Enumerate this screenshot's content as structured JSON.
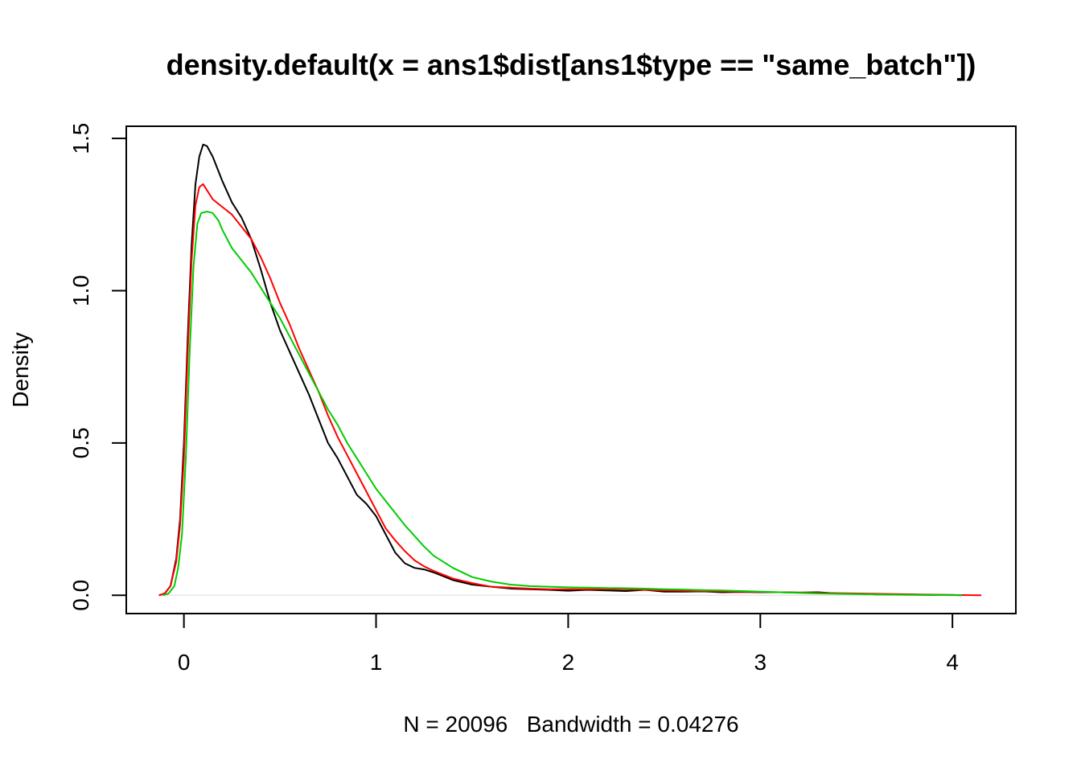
{
  "chart_data": {
    "type": "line",
    "title": "density.default(x = ans1$dist[ans1$type == \"same_batch\"])",
    "xlabel": "N = 20096   Bandwidth = 0.04276",
    "ylabel": "Density",
    "xlim": [
      -0.3,
      4.33
    ],
    "ylim": [
      -0.06,
      1.54
    ],
    "x_ticks": [
      0,
      1,
      2,
      3,
      4
    ],
    "x_tick_labels": [
      "0",
      "1",
      "2",
      "3",
      "4"
    ],
    "y_ticks": [
      0.0,
      0.5,
      1.0,
      1.5
    ],
    "y_tick_labels": [
      "0.0",
      "0.5",
      "1.0",
      "1.5"
    ],
    "baseline": 0,
    "grid": false,
    "legend": "none",
    "series": [
      {
        "color": "#000000",
        "points": [
          [
            -0.13,
            0.0
          ],
          [
            -0.1,
            0.006
          ],
          [
            -0.07,
            0.03
          ],
          [
            -0.04,
            0.12
          ],
          [
            -0.02,
            0.25
          ],
          [
            0.0,
            0.5
          ],
          [
            0.02,
            0.85
          ],
          [
            0.04,
            1.15
          ],
          [
            0.06,
            1.35
          ],
          [
            0.08,
            1.44
          ],
          [
            0.1,
            1.48
          ],
          [
            0.12,
            1.475
          ],
          [
            0.15,
            1.44
          ],
          [
            0.2,
            1.36
          ],
          [
            0.25,
            1.29
          ],
          [
            0.3,
            1.24
          ],
          [
            0.35,
            1.17
          ],
          [
            0.4,
            1.07
          ],
          [
            0.45,
            0.96
          ],
          [
            0.5,
            0.87
          ],
          [
            0.55,
            0.8
          ],
          [
            0.6,
            0.73
          ],
          [
            0.65,
            0.66
          ],
          [
            0.7,
            0.58
          ],
          [
            0.75,
            0.5
          ],
          [
            0.8,
            0.45
          ],
          [
            0.85,
            0.39
          ],
          [
            0.9,
            0.33
          ],
          [
            0.95,
            0.3
          ],
          [
            1.0,
            0.26
          ],
          [
            1.05,
            0.2
          ],
          [
            1.1,
            0.14
          ],
          [
            1.15,
            0.105
          ],
          [
            1.2,
            0.09
          ],
          [
            1.25,
            0.085
          ],
          [
            1.3,
            0.075
          ],
          [
            1.4,
            0.05
          ],
          [
            1.5,
            0.035
          ],
          [
            1.6,
            0.028
          ],
          [
            1.7,
            0.022
          ],
          [
            1.8,
            0.02
          ],
          [
            1.9,
            0.018
          ],
          [
            2.0,
            0.015
          ],
          [
            2.1,
            0.018
          ],
          [
            2.2,
            0.016
          ],
          [
            2.3,
            0.014
          ],
          [
            2.4,
            0.018
          ],
          [
            2.5,
            0.012
          ],
          [
            2.6,
            0.012
          ],
          [
            2.7,
            0.013
          ],
          [
            2.8,
            0.01
          ],
          [
            2.9,
            0.011
          ],
          [
            3.0,
            0.01
          ],
          [
            3.1,
            0.01
          ],
          [
            3.2,
            0.009
          ],
          [
            3.3,
            0.01
          ],
          [
            3.4,
            0.006
          ],
          [
            3.5,
            0.005
          ],
          [
            3.6,
            0.003
          ],
          [
            3.7,
            0.003
          ],
          [
            3.8,
            0.002
          ],
          [
            3.9,
            0.001
          ],
          [
            4.0,
            0.001
          ],
          [
            4.05,
            0.0
          ]
        ]
      },
      {
        "color": "#ff0000",
        "points": [
          [
            -0.13,
            0.0
          ],
          [
            -0.1,
            0.006
          ],
          [
            -0.07,
            0.03
          ],
          [
            -0.04,
            0.11
          ],
          [
            -0.02,
            0.23
          ],
          [
            0.0,
            0.45
          ],
          [
            0.02,
            0.8
          ],
          [
            0.04,
            1.1
          ],
          [
            0.06,
            1.28
          ],
          [
            0.08,
            1.34
          ],
          [
            0.1,
            1.35
          ],
          [
            0.12,
            1.33
          ],
          [
            0.15,
            1.3
          ],
          [
            0.2,
            1.275
          ],
          [
            0.25,
            1.25
          ],
          [
            0.3,
            1.21
          ],
          [
            0.35,
            1.17
          ],
          [
            0.4,
            1.11
          ],
          [
            0.45,
            1.04
          ],
          [
            0.5,
            0.96
          ],
          [
            0.55,
            0.89
          ],
          [
            0.6,
            0.81
          ],
          [
            0.65,
            0.74
          ],
          [
            0.7,
            0.67
          ],
          [
            0.75,
            0.59
          ],
          [
            0.8,
            0.52
          ],
          [
            0.85,
            0.46
          ],
          [
            0.9,
            0.4
          ],
          [
            0.95,
            0.34
          ],
          [
            1.0,
            0.28
          ],
          [
            1.05,
            0.22
          ],
          [
            1.1,
            0.18
          ],
          [
            1.15,
            0.145
          ],
          [
            1.2,
            0.115
          ],
          [
            1.25,
            0.095
          ],
          [
            1.3,
            0.08
          ],
          [
            1.4,
            0.055
          ],
          [
            1.5,
            0.04
          ],
          [
            1.6,
            0.028
          ],
          [
            1.7,
            0.025
          ],
          [
            1.8,
            0.022
          ],
          [
            1.9,
            0.02
          ],
          [
            2.0,
            0.02
          ],
          [
            2.1,
            0.02
          ],
          [
            2.2,
            0.02
          ],
          [
            2.3,
            0.02
          ],
          [
            2.4,
            0.018
          ],
          [
            2.5,
            0.016
          ],
          [
            2.6,
            0.015
          ],
          [
            2.7,
            0.014
          ],
          [
            2.8,
            0.013
          ],
          [
            2.9,
            0.012
          ],
          [
            3.0,
            0.011
          ],
          [
            3.1,
            0.01
          ],
          [
            3.2,
            0.009
          ],
          [
            3.3,
            0.008
          ],
          [
            3.4,
            0.007
          ],
          [
            3.5,
            0.006
          ],
          [
            3.6,
            0.005
          ],
          [
            3.7,
            0.004
          ],
          [
            3.8,
            0.003
          ],
          [
            3.9,
            0.002
          ],
          [
            4.0,
            0.001
          ],
          [
            4.1,
            0.0005
          ],
          [
            4.15,
            0.0
          ]
        ]
      },
      {
        "color": "#00cc00",
        "points": [
          [
            -0.11,
            0.0
          ],
          [
            -0.08,
            0.006
          ],
          [
            -0.05,
            0.03
          ],
          [
            -0.03,
            0.09
          ],
          [
            -0.01,
            0.2
          ],
          [
            0.01,
            0.45
          ],
          [
            0.03,
            0.8
          ],
          [
            0.05,
            1.08
          ],
          [
            0.07,
            1.22
          ],
          [
            0.09,
            1.255
          ],
          [
            0.12,
            1.26
          ],
          [
            0.15,
            1.255
          ],
          [
            0.18,
            1.23
          ],
          [
            0.2,
            1.2
          ],
          [
            0.25,
            1.14
          ],
          [
            0.3,
            1.1
          ],
          [
            0.35,
            1.06
          ],
          [
            0.4,
            1.01
          ],
          [
            0.45,
            0.96
          ],
          [
            0.5,
            0.91
          ],
          [
            0.55,
            0.85
          ],
          [
            0.6,
            0.79
          ],
          [
            0.65,
            0.73
          ],
          [
            0.7,
            0.67
          ],
          [
            0.75,
            0.61
          ],
          [
            0.8,
            0.56
          ],
          [
            0.85,
            0.5
          ],
          [
            0.9,
            0.45
          ],
          [
            0.95,
            0.4
          ],
          [
            1.0,
            0.35
          ],
          [
            1.05,
            0.31
          ],
          [
            1.1,
            0.27
          ],
          [
            1.15,
            0.23
          ],
          [
            1.2,
            0.195
          ],
          [
            1.25,
            0.16
          ],
          [
            1.3,
            0.13
          ],
          [
            1.4,
            0.09
          ],
          [
            1.5,
            0.06
          ],
          [
            1.6,
            0.045
          ],
          [
            1.7,
            0.035
          ],
          [
            1.8,
            0.03
          ],
          [
            1.9,
            0.028
          ],
          [
            2.0,
            0.026
          ],
          [
            2.1,
            0.025
          ],
          [
            2.2,
            0.024
          ],
          [
            2.3,
            0.023
          ],
          [
            2.4,
            0.022
          ],
          [
            2.5,
            0.02
          ],
          [
            2.6,
            0.019
          ],
          [
            2.7,
            0.017
          ],
          [
            2.8,
            0.016
          ],
          [
            2.9,
            0.014
          ],
          [
            3.0,
            0.012
          ],
          [
            3.1,
            0.01
          ],
          [
            3.2,
            0.008
          ],
          [
            3.3,
            0.006
          ],
          [
            3.4,
            0.005
          ],
          [
            3.5,
            0.004
          ],
          [
            3.6,
            0.003
          ],
          [
            3.7,
            0.002
          ],
          [
            3.8,
            0.0015
          ],
          [
            3.9,
            0.001
          ],
          [
            4.0,
            0.0005
          ],
          [
            4.05,
            0.0
          ]
        ]
      }
    ]
  }
}
